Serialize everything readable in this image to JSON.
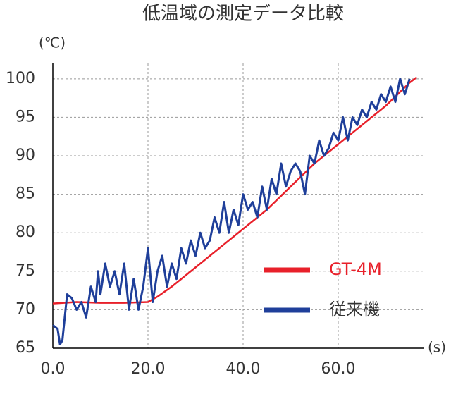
{
  "chart_data": {
    "type": "line",
    "title": "低温域の測定データ比較",
    "y_unit": "(℃)",
    "x_unit": "(s)",
    "xlim": [
      0,
      78
    ],
    "ylim": [
      65,
      102
    ],
    "xticks": [
      {
        "value": 0,
        "label": "0.0"
      },
      {
        "value": 20,
        "label": "20.0"
      },
      {
        "value": 40,
        "label": "40.0"
      },
      {
        "value": 60,
        "label": "60.0"
      }
    ],
    "yticks": [
      65,
      70,
      75,
      80,
      85,
      90,
      95,
      100
    ],
    "grid": true,
    "legend": "lower right",
    "series": [
      {
        "name": "GT-4M",
        "color": "#e8202a",
        "label_color": "#e8202a",
        "x": [
          0,
          5,
          10,
          15,
          20,
          22,
          25,
          30,
          35,
          40,
          45,
          50,
          55,
          60,
          65,
          70,
          75,
          76.5
        ],
        "values": [
          70.8,
          71,
          70.9,
          70.9,
          71,
          71.7,
          73,
          75.5,
          78,
          80.5,
          83,
          86,
          89,
          91.5,
          94,
          96.5,
          99.5,
          100.2
        ]
      },
      {
        "name": "従来機",
        "color": "#1f3f9a",
        "label_color": "#333333",
        "x": [
          0,
          1,
          1.5,
          2,
          2.5,
          3,
          4,
          5,
          6,
          7,
          8,
          9,
          9.5,
          10,
          11,
          12,
          13,
          14,
          15,
          16,
          17,
          18,
          19,
          20,
          21,
          22,
          23,
          24,
          25,
          26,
          27,
          28,
          29,
          30,
          31,
          32,
          33,
          34,
          35,
          36,
          37,
          38,
          39,
          40,
          41,
          42,
          43,
          44,
          45,
          46,
          47,
          48,
          49,
          50,
          51,
          52,
          53,
          54,
          55,
          56,
          57,
          58,
          59,
          60,
          61,
          62,
          63,
          64,
          65,
          66,
          67,
          68,
          69,
          70,
          71,
          72,
          73,
          74,
          75
        ],
        "values": [
          68,
          67.5,
          65.5,
          66,
          69,
          72,
          71.5,
          70,
          71,
          69,
          73,
          71,
          75,
          72,
          76,
          73,
          75,
          72,
          76,
          70,
          74,
          70,
          73,
          78,
          71,
          75,
          77,
          73,
          76,
          74,
          78,
          76,
          79,
          77,
          80,
          78,
          79,
          82,
          80,
          84,
          80,
          83,
          81,
          85,
          83,
          84,
          82,
          86,
          83,
          87,
          85,
          89,
          86,
          88,
          89,
          88,
          85,
          90,
          89,
          92,
          90,
          91,
          93,
          92,
          95,
          92,
          95,
          94,
          96,
          95,
          97,
          96,
          98,
          97,
          99,
          97,
          100,
          98,
          100
        ]
      }
    ]
  }
}
